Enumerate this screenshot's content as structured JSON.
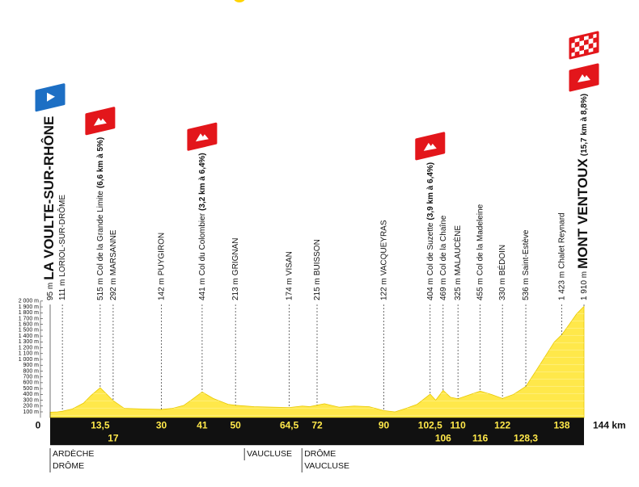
{
  "chart_data": {
    "type": "area",
    "color": "#ffe84a",
    "x": [
      0,
      2,
      3.3,
      6,
      9,
      11,
      13.5,
      15,
      17,
      20,
      25,
      30,
      33,
      36,
      38,
      41,
      44,
      48,
      50,
      55,
      60,
      64.5,
      68,
      70,
      72,
      74,
      78,
      82,
      86,
      90,
      93,
      96,
      99,
      102.5,
      104,
      106,
      108,
      110,
      113,
      116,
      119,
      122,
      125,
      128.3,
      131,
      134,
      136,
      138,
      140,
      142,
      144
    ],
    "values": [
      95,
      100,
      111,
      150,
      250,
      380,
      515,
      420,
      292,
      160,
      150,
      142,
      160,
      210,
      300,
      441,
      330,
      230,
      213,
      190,
      180,
      174,
      200,
      190,
      215,
      240,
      180,
      200,
      190,
      122,
      100,
      160,
      230,
      404,
      300,
      469,
      350,
      325,
      390,
      455,
      400,
      330,
      400,
      536,
      800,
      1100,
      1300,
      1423,
      1600,
      1780,
      1910
    ],
    "xlim": [
      0,
      144
    ],
    "ylim": [
      0,
      2000
    ],
    "xticks": [
      0,
      {
        "value": 13.5,
        "label": "13,5"
      },
      17,
      30,
      41,
      50,
      {
        "value": 64.5,
        "label": "64,5"
      },
      72,
      90,
      {
        "value": 102.5,
        "label": "102,5"
      },
      106,
      110,
      116,
      122,
      {
        "value": 128.3,
        "label": "128,3"
      },
      138,
      {
        "value": 144,
        "label": "144 km"
      }
    ],
    "yticks": [
      {
        "value": 100,
        "label": "100 m"
      },
      {
        "value": 200,
        "label": "200 m"
      },
      {
        "value": 300,
        "label": "300 m"
      },
      {
        "value": 400,
        "label": "400 m"
      },
      {
        "value": 500,
        "label": "500 m"
      },
      {
        "value": 600,
        "label": "600 m"
      },
      {
        "value": 700,
        "label": "700 m"
      },
      {
        "value": 800,
        "label": "800 m"
      },
      {
        "value": 900,
        "label": "900 m"
      },
      {
        "value": 1000,
        "label": "1 000 m"
      },
      {
        "value": 1100,
        "label": "1 100 m"
      },
      {
        "value": 1200,
        "label": "1 200 m"
      },
      {
        "value": 1300,
        "label": "1 300 m"
      },
      {
        "value": 1400,
        "label": "1 400 m"
      },
      {
        "value": 1500,
        "label": "1 500 m"
      },
      {
        "value": 1600,
        "label": "1 600 m"
      },
      {
        "value": 1700,
        "label": "1 700 m"
      },
      {
        "value": 1800,
        "label": "1 800 m"
      },
      {
        "value": 1900,
        "label": "1 900 m"
      },
      {
        "value": 2000,
        "label": "2 000 m"
      }
    ],
    "waypoints": [
      {
        "km": 0,
        "elevation": {
          "value": 95,
          "label": "95 m"
        },
        "name": "LA VOULTE-SUR-RHÔNE",
        "major": true,
        "flag": "start"
      },
      {
        "km": 3.3,
        "elevation": {
          "value": 111,
          "label": "111 m"
        },
        "name": "LORIOL-SUR-DRÔME"
      },
      {
        "km": 13.5,
        "elevation": {
          "value": 515,
          "label": "515 m"
        },
        "name": "Col de la Grande Limite",
        "detail": "(6,6 km à 5%)",
        "flag": "climb"
      },
      {
        "km": 17,
        "elevation": {
          "value": 292,
          "label": "292 m"
        },
        "name": "MARSANNE"
      },
      {
        "km": 30,
        "elevation": {
          "value": 142,
          "label": "142 m"
        },
        "name": "PUYGIRON"
      },
      {
        "km": 41,
        "elevation": {
          "value": 441,
          "label": "441 m"
        },
        "name": "Col du Colombier",
        "detail": "(3,2 km à 6,4%)",
        "flag": "climb"
      },
      {
        "km": 50,
        "elevation": {
          "value": 213,
          "label": "213 m"
        },
        "name": "GRIGNAN"
      },
      {
        "km": 64.5,
        "elevation": {
          "value": 174,
          "label": "174 m"
        },
        "name": "VISAN"
      },
      {
        "km": 72,
        "elevation": {
          "value": 215,
          "label": "215 m"
        },
        "name": "BUISSON"
      },
      {
        "km": 90,
        "elevation": {
          "value": 122,
          "label": "122 m"
        },
        "name": "VACQUEYRAS"
      },
      {
        "km": 102.5,
        "elevation": {
          "value": 404,
          "label": "404 m"
        },
        "name": "Col de Suzette",
        "detail": "(3,9 km à 6,4%)",
        "flag": "climb"
      },
      {
        "km": 106,
        "elevation": {
          "value": 469,
          "label": "469 m"
        },
        "name": "Col de la Chaîne"
      },
      {
        "km": 110,
        "elevation": {
          "value": 325,
          "label": "325 m"
        },
        "name": "MALAUCÈNE"
      },
      {
        "km": 116,
        "elevation": {
          "value": 455,
          "label": "455 m"
        },
        "name": "Col de la Madeleine"
      },
      {
        "km": 122,
        "elevation": {
          "value": 330,
          "label": "330 m"
        },
        "name": "BÉDOIN"
      },
      {
        "km": 128.3,
        "elevation": {
          "value": 536,
          "label": "536 m"
        },
        "name": "Saint-Estève"
      },
      {
        "km": 138,
        "elevation": {
          "value": 1423,
          "label": "1 423 m"
        },
        "name": "Chalet Reynard"
      },
      {
        "km": 144,
        "elevation": {
          "value": 1910,
          "label": "1 910 m"
        },
        "name": "MONT VENTOUX",
        "detail": "(15,7 km à 8,8%)",
        "major": true,
        "flag": "finish"
      }
    ],
    "regions": [
      {
        "km": 0,
        "names": [
          "ARDÈCHE",
          "DRÔME"
        ]
      },
      {
        "km": 52.4,
        "names": [
          "VAUCLUSE"
        ]
      },
      {
        "km": 67.9,
        "names": [
          "DRÔME",
          "VAUCLUSE"
        ]
      }
    ]
  }
}
